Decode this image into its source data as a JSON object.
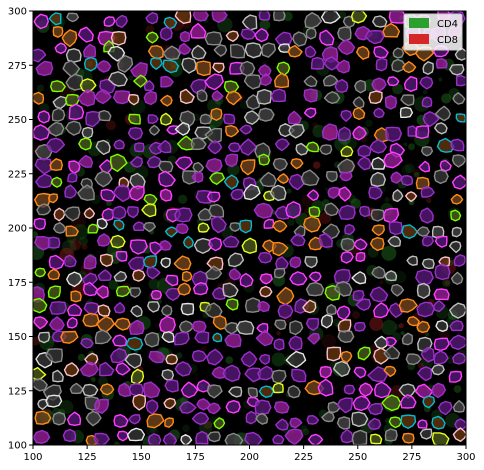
{
  "chart_data": {
    "type": "image",
    "xlim": [
      100,
      300
    ],
    "ylim": [
      100,
      300
    ],
    "x_ticks": [
      "100",
      "125",
      "150",
      "175",
      "200",
      "225",
      "250",
      "275",
      "300"
    ],
    "y_ticks": [
      "100",
      "125",
      "150",
      "175",
      "200",
      "225",
      "250",
      "275",
      "300"
    ],
    "legend": {
      "placement": "top-right",
      "items": [
        {
          "label": "CD4",
          "color": "#2ca02c"
        },
        {
          "label": "CD8",
          "color": "#d62728"
        }
      ]
    },
    "grid": false,
    "background_color": "#000000",
    "cell_outline_colors": [
      "#9b30c8",
      "#ff40ff",
      "#8a8a8a",
      "#c0c0c0",
      "#ffc0cb",
      "#7fff00",
      "#e8ff20",
      "#ff8c1a",
      "#00bcd4",
      "#8b4513",
      "#e6e6e6"
    ],
    "cell_fill_colors": [
      "#5c1a80",
      "#a020a0",
      "#4a4a4a",
      "#7a4a20",
      "#3a3a3a",
      "#506020",
      "#6a3a10"
    ]
  }
}
